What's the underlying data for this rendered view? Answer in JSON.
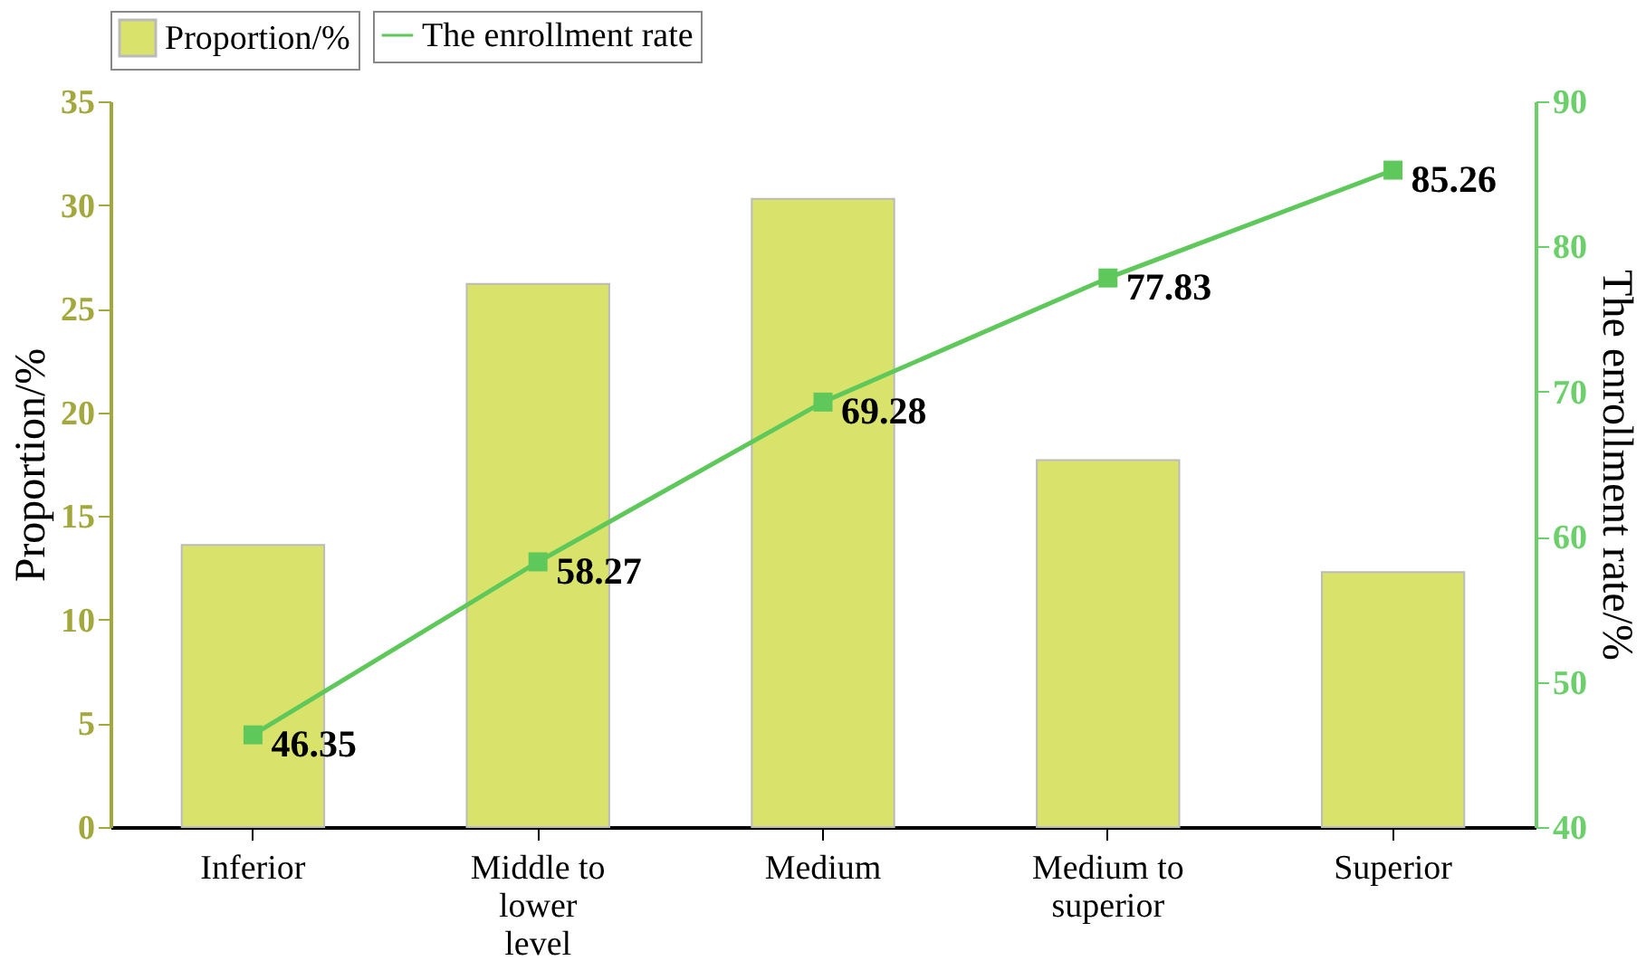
{
  "chart_data": {
    "type": "bar",
    "ylabel": "Proportion/%",
    "y2label": "The enrollment rate/%",
    "categories": [
      "Inferior",
      "Middle to\nlower\nlevel",
      "Medium",
      "Medium to\nsuperior",
      "Superior"
    ],
    "series": [
      {
        "name": "Proportion/%",
        "color": "#d9e36b",
        "values": [
          13.6,
          26.2,
          30.3,
          17.7,
          12.3
        ]
      },
      {
        "name": "The enrollment rate",
        "type": "line",
        "axis": "y2",
        "color": "#5ec85a",
        "marker": "square",
        "data_labels": true,
        "values": [
          46.35,
          58.27,
          69.28,
          77.83,
          85.26
        ]
      }
    ],
    "ylim": [
      0,
      35
    ],
    "yticks": [
      0,
      5,
      10,
      15,
      20,
      25,
      30,
      35
    ],
    "y2lim": [
      40,
      90
    ],
    "y2ticks": [
      40,
      50,
      60,
      70,
      80,
      90
    ],
    "legend": "top",
    "grid": false
  }
}
